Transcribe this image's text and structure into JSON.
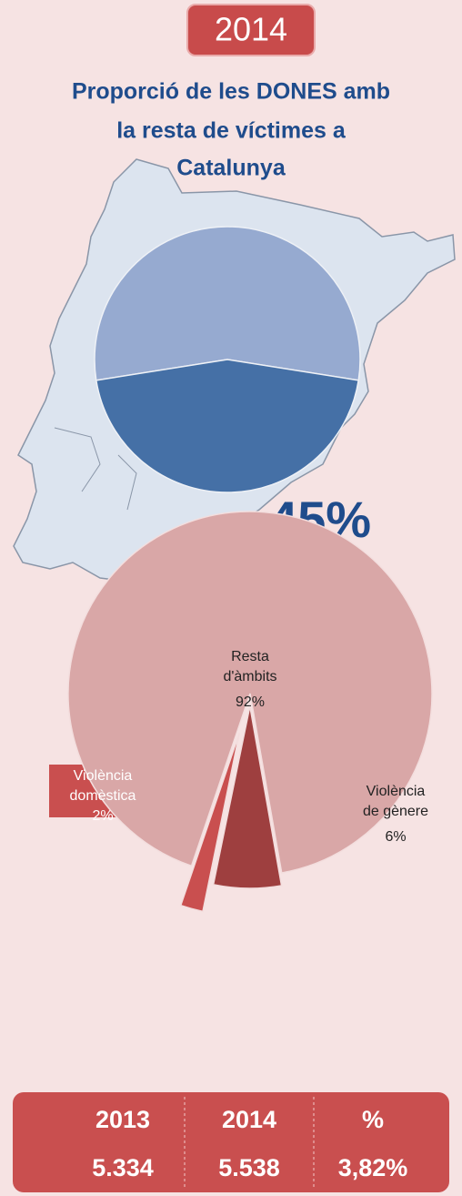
{
  "badge": "2014",
  "title": [
    "Proporció de les DONES  amb",
    "la resta de víctimes a",
    "Catalunya"
  ],
  "chart_data": [
    {
      "type": "pie",
      "values": [
        55,
        45
      ],
      "colors": [
        "#96aad0",
        "#4570a6"
      ],
      "value_labels": [
        null,
        "45%"
      ]
    },
    {
      "type": "pie",
      "categories": [
        "Resta d'àmbits",
        "Violència de gènere",
        "Violència domèstica"
      ],
      "values": [
        92,
        6,
        2
      ],
      "colors": [
        "#d9a7a7",
        "#9e3f3f",
        "#c94f4f"
      ],
      "value_labels": [
        "92%",
        "6%",
        "2%"
      ]
    }
  ],
  "table": {
    "header": [
      "2013",
      "2014",
      "%"
    ],
    "row": [
      "5.334",
      "5.538",
      "3,82%"
    ]
  }
}
